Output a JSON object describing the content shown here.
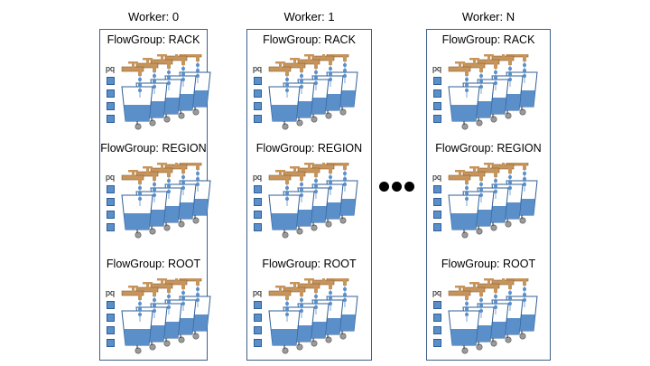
{
  "workers": [
    {
      "title": "Worker: 0",
      "groups": [
        {
          "title": "FlowGroup: RACK",
          "pq_label": "pq"
        },
        {
          "title": "FlowGroup: REGION",
          "pq_label": "pq"
        },
        {
          "title": "FlowGroup: ROOT",
          "pq_label": "pq"
        }
      ]
    },
    {
      "title": "Worker: 1",
      "groups": [
        {
          "title": "FlowGroup: RACK",
          "pq_label": "pq"
        },
        {
          "title": "FlowGroup: REGION",
          "pq_label": "pq"
        },
        {
          "title": "FlowGroup: ROOT",
          "pq_label": "pq"
        }
      ]
    },
    {
      "title": "Worker: N",
      "groups": [
        {
          "title": "FlowGroup: RACK",
          "pq_label": "pq"
        },
        {
          "title": "FlowGroup: REGION",
          "pq_label": "pq"
        },
        {
          "title": "FlowGroup: ROOT",
          "pq_label": "pq"
        }
      ]
    }
  ],
  "colors": {
    "box_border": "#3e5f86",
    "water": "#5b8fc9",
    "pq_square": "#5b8fc9",
    "faucet": "#c7955c"
  },
  "icons": {
    "faucet": "faucet-icon",
    "bucket": "bucket-icon",
    "valve": "valve-icon",
    "ellipsis": "ellipsis-icon"
  }
}
